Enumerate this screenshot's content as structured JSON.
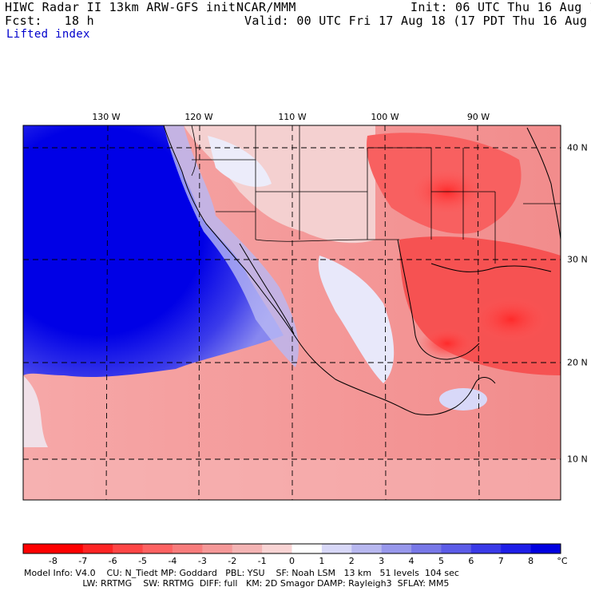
{
  "header": {
    "title_left": "HIWC Radar II 13km ARW-GFS init",
    "org": "NCAR/MMM",
    "init": "Init: 06 UTC Thu 16 Aug 18",
    "fcst": "Fcst:   18 h",
    "valid": "Valid: 00 UTC Fri 17 Aug 18 (17 PDT Thu 16 Aug 18)",
    "field": "Lifted index"
  },
  "map": {
    "lon_labels": [
      "130 W",
      "120 W",
      "110 W",
      "100 W",
      "90 W"
    ],
    "lat_labels": [
      "40 N",
      "30 N",
      "20 N",
      "10 N"
    ],
    "colors": {
      "strong_blue": "#0000e6",
      "light_red": "#f8a0a0",
      "strong_red": "#ff2a2a",
      "land_mid": "#f47070"
    }
  },
  "colorbar": {
    "labels": [
      "-8",
      "-7",
      "-6",
      "-5",
      "-4",
      "-3",
      "-2",
      "-1",
      "0",
      "1",
      "2",
      "3",
      "4",
      "5",
      "6",
      "7",
      "8"
    ],
    "unit": "°C",
    "colors": [
      "#ff0000",
      "#ff2424",
      "#ff4646",
      "#fe6262",
      "#f87c7c",
      "#f59898",
      "#f4b4b4",
      "#f9d4d4",
      "#ffffff",
      "#d8d8f8",
      "#b8b8f0",
      "#9898ec",
      "#7878e8",
      "#5c5ce8",
      "#3a3ae8",
      "#1e1ee8",
      "#0000e0"
    ]
  },
  "footer": {
    "line1": "Model Info: V4.0    CU: N_Tiedt MP: Goddard   PBL: YSU    SF: Noah LSM   13 km   51 levels  104 sec",
    "line2": "                     LW: RRTMG    SW: RRTMG  DIFF: full   KM: 2D Smagor DAMP: Rayleigh3  SFLAY: MM5"
  }
}
